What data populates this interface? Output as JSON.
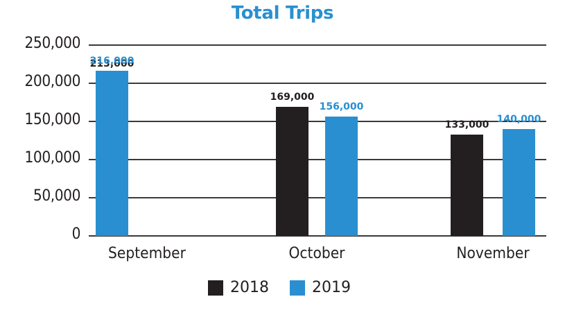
{
  "chart_data": {
    "type": "bar",
    "title": "Total Trips",
    "xlabel": "",
    "ylabel": "",
    "categories": [
      "September",
      "October",
      "November"
    ],
    "series": [
      {
        "name": "2018",
        "color": "#231f20",
        "values": [
          213000,
          169000,
          133000
        ],
        "labels": [
          "213,000",
          "169,000",
          "133,000"
        ]
      },
      {
        "name": "2019",
        "color": "#2a8fd0",
        "values": [
          216000,
          156000,
          140000
        ],
        "labels": [
          "216,000",
          "156,000",
          "140,000"
        ]
      }
    ],
    "ylim": [
      0,
      250000
    ],
    "yticks": [
      0,
      50000,
      100000,
      150000,
      200000,
      250000
    ],
    "ytick_labels": [
      "0",
      "50,000",
      "100,000",
      "150,000",
      "200,000",
      "250,000"
    ],
    "grid": true,
    "legend_position": "bottom"
  },
  "colors": {
    "title": "#2a8fd0",
    "series_2018": "#231f20",
    "series_2019": "#2a8fd0"
  }
}
